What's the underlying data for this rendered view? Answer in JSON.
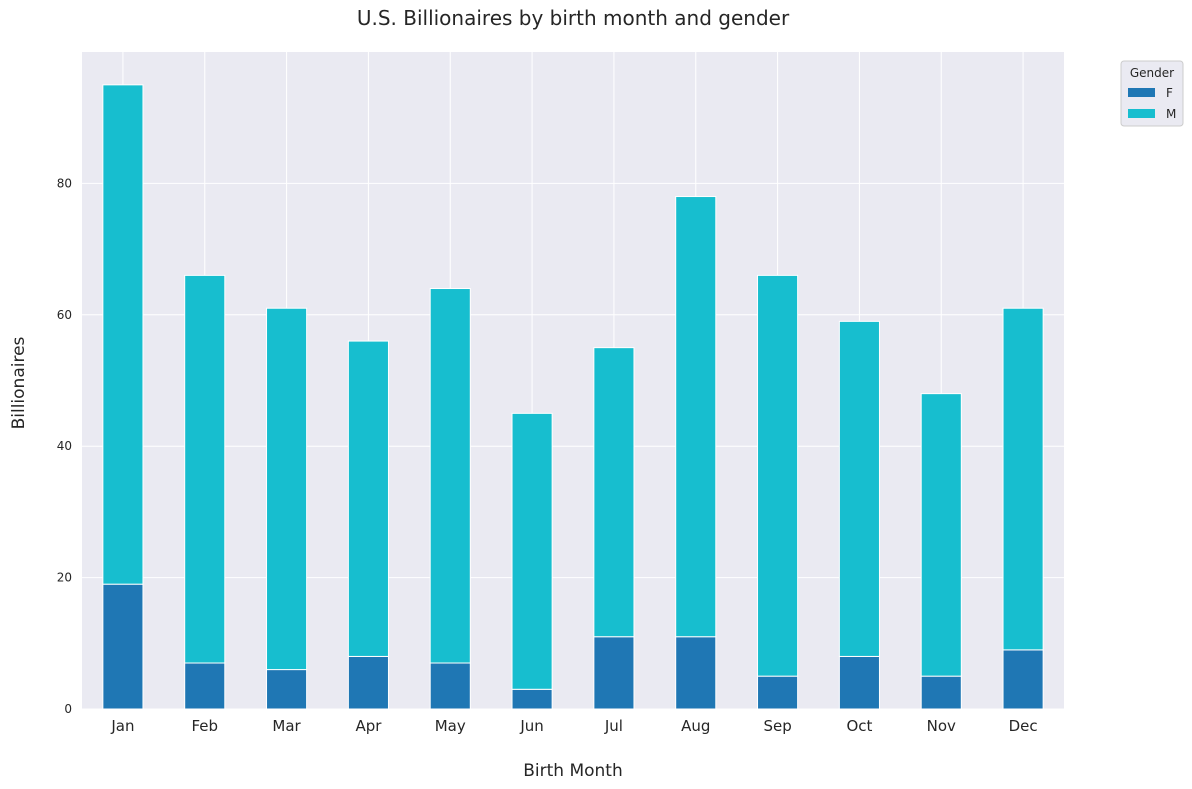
{
  "chart_data": {
    "type": "bar",
    "stacked": true,
    "title": "U.S. Billionaires by birth month and gender",
    "xlabel": "Birth Month",
    "ylabel": "Billionaires",
    "categories": [
      "Jan",
      "Feb",
      "Mar",
      "Apr",
      "May",
      "Jun",
      "Jul",
      "Aug",
      "Sep",
      "Oct",
      "Nov",
      "Dec"
    ],
    "series": [
      {
        "name": "F",
        "color": "#1f77b4",
        "values": [
          19,
          7,
          6,
          8,
          7,
          3,
          11,
          11,
          5,
          8,
          5,
          9
        ]
      },
      {
        "name": "M",
        "color": "#17becf",
        "values": [
          76,
          59,
          55,
          48,
          57,
          42,
          44,
          67,
          61,
          51,
          43,
          52
        ]
      }
    ],
    "ylim": [
      0,
      100
    ],
    "yticks": [
      0,
      20,
      40,
      60,
      80
    ],
    "grid": true,
    "legend": {
      "title": "Gender",
      "placement": "outside-top-right"
    },
    "colors": {
      "plot_background": "#eaeaf2",
      "grid": "#ffffff"
    }
  }
}
